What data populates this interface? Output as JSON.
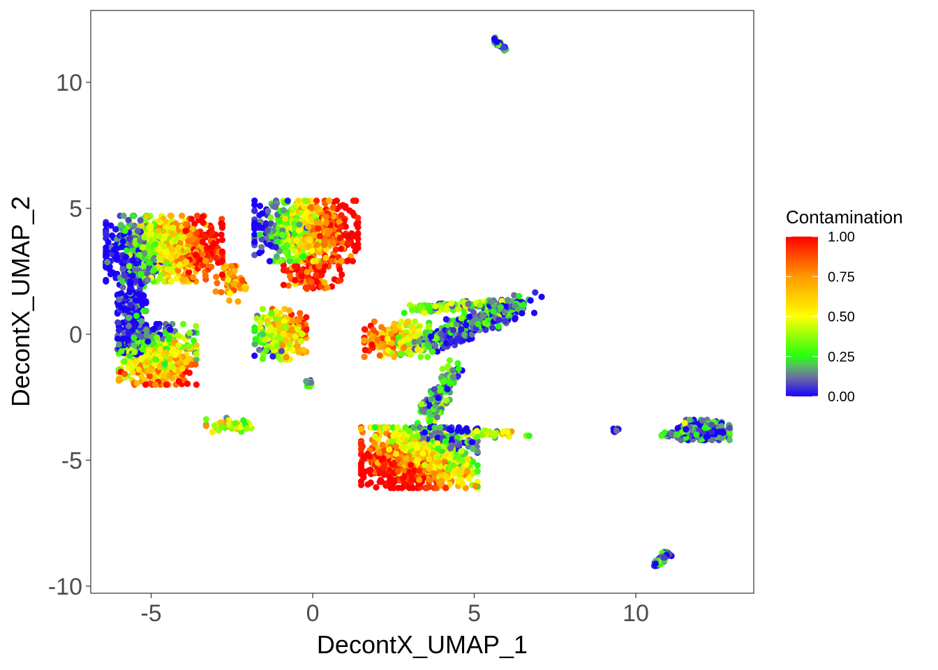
{
  "chart_data": {
    "type": "scatter",
    "title": "",
    "xlabel": "DecontX_UMAP_1",
    "ylabel": "DecontX_UMAP_2",
    "xlim": [
      -6.87,
      13.65
    ],
    "ylim": [
      -10.28,
      12.85
    ],
    "xticks": [
      -5,
      0,
      5,
      10
    ],
    "yticks": [
      -10,
      -5,
      0,
      5,
      10
    ],
    "xtick_labels": [
      "-5",
      "0",
      "5",
      "10"
    ],
    "ytick_labels": [
      "-10",
      "-5",
      "0",
      "5",
      "10"
    ],
    "grid": false,
    "legend": {
      "title": "Contamination",
      "placement": "right",
      "range": [
        0,
        1
      ],
      "breaks": [
        "1.00",
        "0.75",
        "0.50",
        "0.25",
        "0.00"
      ],
      "colors": [
        {
          "at": 0.0,
          "color": "#1a00ff"
        },
        {
          "at": 0.12,
          "color": "#6a6fa0"
        },
        {
          "at": 0.2,
          "color": "#52c85a"
        },
        {
          "at": 0.25,
          "color": "#22ff11"
        },
        {
          "at": 0.5,
          "color": "#ffff00"
        },
        {
          "at": 0.75,
          "color": "#ff9a00"
        },
        {
          "at": 1.0,
          "color": "#ff0000"
        }
      ]
    },
    "clusters": [
      {
        "center": [
          -4.6,
          3.4
        ],
        "spread": [
          0.9,
          0.65
        ],
        "n": 900,
        "contamination": 0.5,
        "grad": [
          0.35,
          0.05
        ]
      },
      {
        "center": [
          -5.6,
          1.0
        ],
        "spread": [
          0.22,
          0.9
        ],
        "n": 260,
        "contamination": 0.02,
        "grad": [
          0,
          0
        ]
      },
      {
        "center": [
          -4.8,
          -0.8
        ],
        "spread": [
          0.6,
          0.6
        ],
        "n": 520,
        "contamination": 0.45,
        "grad": [
          0.1,
          -0.32
        ]
      },
      {
        "center": [
          -3.5,
          3.1
        ],
        "spread": [
          0.3,
          0.18
        ],
        "n": 60,
        "contamination": 0.85,
        "grad": [
          0,
          0
        ]
      },
      {
        "center": [
          -2.5,
          2.0
        ],
        "spread": [
          0.25,
          0.35
        ],
        "n": 60,
        "contamination": 0.75,
        "grad": [
          0,
          0
        ]
      },
      {
        "center": [
          -0.2,
          4.1
        ],
        "spread": [
          0.8,
          0.6
        ],
        "n": 620,
        "contamination": 0.55,
        "grad": [
          0.4,
          0
        ]
      },
      {
        "center": [
          0.0,
          2.4
        ],
        "spread": [
          0.45,
          0.3
        ],
        "n": 110,
        "contamination": 0.95,
        "grad": [
          0,
          0
        ]
      },
      {
        "center": [
          -1.0,
          0.0
        ],
        "spread": [
          0.4,
          0.5
        ],
        "n": 260,
        "contamination": 0.5,
        "grad": [
          0.35,
          0.1
        ]
      },
      {
        "center": [
          -0.1,
          -1.95
        ],
        "spread": [
          0.05,
          0.06
        ],
        "n": 15,
        "contamination": 0.2,
        "grad": [
          0,
          0
        ]
      },
      {
        "center": [
          -2.6,
          -3.6
        ],
        "spread": [
          0.35,
          0.14
        ],
        "n": 45,
        "contamination": 0.5,
        "grad": [
          0,
          0
        ]
      },
      {
        "center": [
          2.6,
          -0.2
        ],
        "spread": [
          0.5,
          0.35
        ],
        "n": 220,
        "contamination": 0.6,
        "grad": [
          -0.25,
          0
        ]
      },
      {
        "line": [
          [
            3.6,
            -0.4
          ],
          [
            6.5,
            1.3
          ]
        ],
        "spread": [
          0.3,
          0.18
        ],
        "n": 420,
        "contamination": 0.12,
        "grad": [
          0,
          0
        ]
      },
      {
        "line": [
          [
            3.0,
            1.0
          ],
          [
            5.5,
            1.2
          ]
        ],
        "spread": [
          0.2,
          0.08
        ],
        "n": 120,
        "contamination": 0.3,
        "grad": [
          0,
          0
        ]
      },
      {
        "line": [
          [
            4.4,
            -1.3
          ],
          [
            3.5,
            -3.5
          ]
        ],
        "spread": [
          0.15,
          0.25
        ],
        "n": 120,
        "contamination": 0.2,
        "grad": [
          0,
          0
        ]
      },
      {
        "center": [
          3.3,
          -4.9
        ],
        "spread": [
          0.9,
          0.6
        ],
        "n": 950,
        "contamination": 0.62,
        "grad": [
          -0.22,
          -0.32
        ]
      },
      {
        "center": [
          5.5,
          -3.95
        ],
        "spread": [
          0.6,
          0.08
        ],
        "n": 40,
        "contamination": 0.4,
        "grad": [
          0,
          0
        ]
      },
      {
        "line": [
          [
            5.6,
            11.7
          ],
          [
            6.0,
            11.3
          ]
        ],
        "spread": [
          0.04,
          0.04
        ],
        "n": 30,
        "contamination": 0.08,
        "grad": [
          0,
          0
        ]
      },
      {
        "center": [
          9.4,
          -3.8
        ],
        "spread": [
          0.05,
          0.05
        ],
        "n": 10,
        "contamination": 0.05,
        "grad": [
          0,
          0
        ]
      },
      {
        "center": [
          12.1,
          -3.8
        ],
        "spread": [
          0.4,
          0.2
        ],
        "n": 260,
        "contamination": 0.12,
        "grad": [
          0,
          0
        ]
      },
      {
        "line": [
          [
            10.8,
            -4.0
          ],
          [
            11.6,
            -3.9
          ]
        ],
        "spread": [
          0.1,
          0.04
        ],
        "n": 40,
        "contamination": 0.15,
        "grad": [
          0,
          0
        ]
      },
      {
        "line": [
          [
            10.6,
            -9.2
          ],
          [
            11.0,
            -8.7
          ]
        ],
        "spread": [
          0.06,
          0.06
        ],
        "n": 70,
        "contamination": 0.1,
        "grad": [
          0,
          0
        ]
      }
    ]
  }
}
